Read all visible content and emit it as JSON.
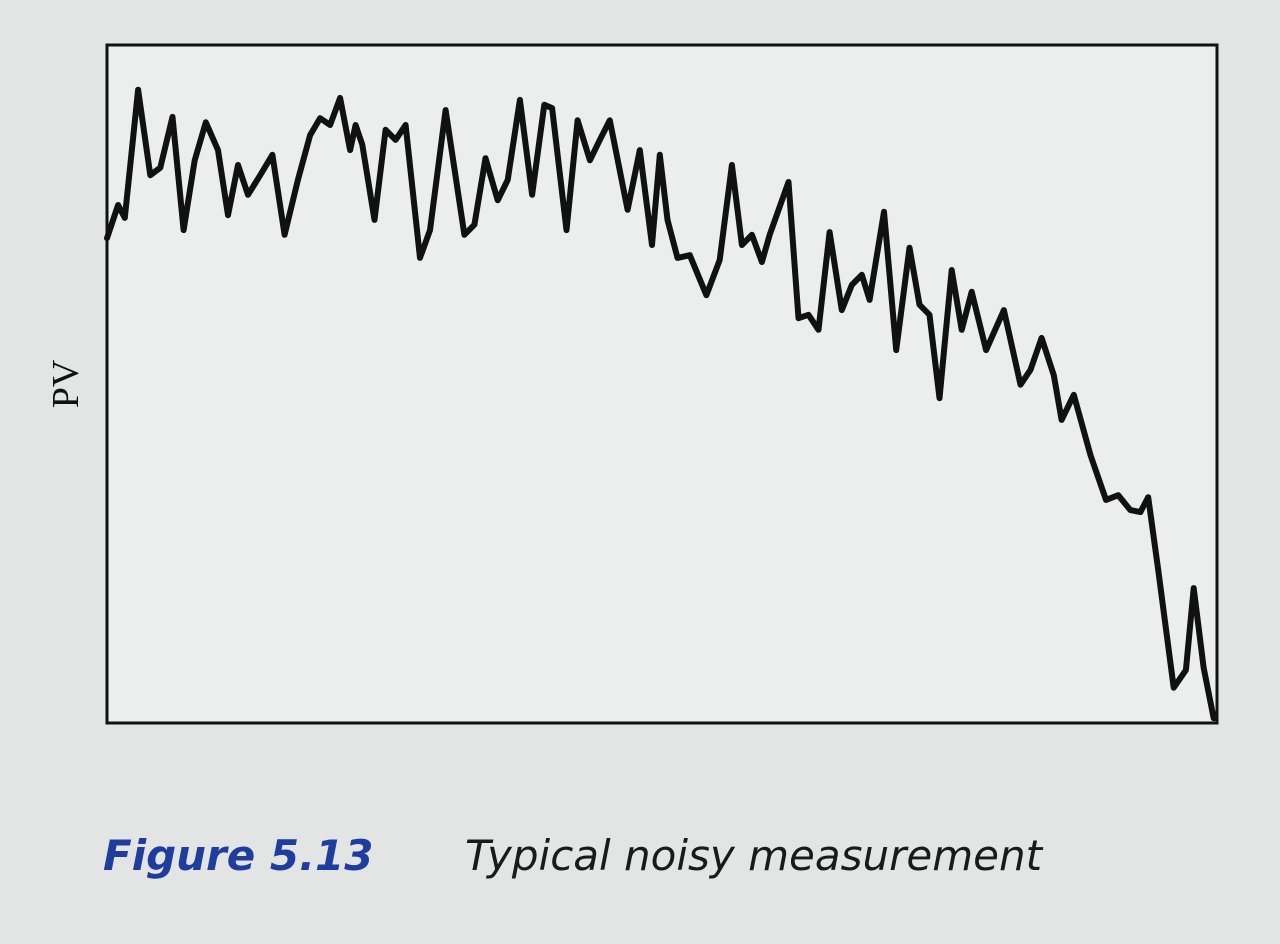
{
  "chart_data": {
    "type": "line",
    "y_label": "PV",
    "caption_number": "Figure 5.13",
    "caption_text": "Typical noisy measurement",
    "xlim": [
      0,
      100
    ],
    "ylim": [
      0,
      100
    ],
    "x": [
      0,
      1.0,
      1.6,
      2.8,
      3.9,
      4.8,
      5.9,
      6.9,
      7.9,
      8.9,
      10.0,
      10.9,
      11.8,
      12.7,
      13.8,
      14.9,
      16.0,
      17.2,
      18.3,
      19.2,
      20.1,
      21.0,
      21.9,
      22.4,
      23.0,
      24.1,
      25.1,
      26.0,
      26.9,
      28.2,
      29.1,
      30.5,
      32.2,
      33.1,
      34.1,
      35.2,
      36.1,
      37.2,
      38.3,
      39.4,
      40.1,
      41.4,
      42.4,
      43.5,
      44.4,
      45.3,
      46.9,
      48.0,
      49.1,
      49.8,
      50.5,
      51.4,
      52.5,
      54.0,
      55.2,
      56.3,
      57.2,
      58.1,
      59.0,
      59.7,
      61.4,
      62.3,
      63.2,
      64.1,
      65.1,
      66.2,
      67.1,
      68.0,
      68.7,
      70.0,
      71.1,
      72.3,
      73.2,
      74.1,
      75.0,
      76.1,
      77.0,
      77.9,
      79.2,
      80.8,
      82.3,
      83.2,
      84.2,
      85.3,
      86.0,
      87.1,
      88.6,
      90.0,
      91.1,
      92.2,
      93.1,
      93.8,
      94.7,
      96.1,
      97.2,
      97.9,
      98.8,
      99.7
    ],
    "series": [
      {
        "color": "#111111",
        "values": [
          71.5,
          76.4,
          74.5,
          93.4,
          80.8,
          81.9,
          89.4,
          72.7,
          83.0,
          88.6,
          84.5,
          74.9,
          82.3,
          77.9,
          80.8,
          83.8,
          72.0,
          80.1,
          86.7,
          89.2,
          88.2,
          92.2,
          84.5,
          88.2,
          85.3,
          74.2,
          87.5,
          86.0,
          88.2,
          68.6,
          72.7,
          90.4,
          72.0,
          73.5,
          83.3,
          77.1,
          80.1,
          91.9,
          77.9,
          91.2,
          90.7,
          72.7,
          88.9,
          83.0,
          86.0,
          88.9,
          75.7,
          84.5,
          70.5,
          83.8,
          74.2,
          68.6,
          69.0,
          63.1,
          68.3,
          82.3,
          70.5,
          72.0,
          68.0,
          72.0,
          79.8,
          59.7,
          60.2,
          58.0,
          72.4,
          60.9,
          64.6,
          66.1,
          62.4,
          75.4,
          55.0,
          70.1,
          61.7,
          60.2,
          47.9,
          66.8,
          58.0,
          63.6,
          55.0,
          60.9,
          49.9,
          52.1,
          56.8,
          51.3,
          44.7,
          48.4,
          39.5,
          32.9,
          33.6,
          31.4,
          31.1,
          33.3,
          22.6,
          5.2,
          7.8,
          19.9,
          8.1,
          0.7
        ]
      }
    ]
  }
}
